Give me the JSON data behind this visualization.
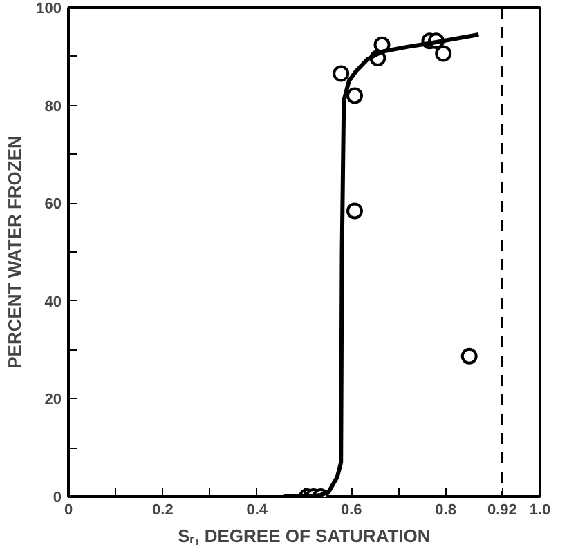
{
  "chart_data": {
    "type": "scatter",
    "xlabel": "Sᵣ, DEGREE OF SATURATION",
    "ylabel": "PERCENT WATER FROZEN",
    "xlim": [
      0,
      1.0
    ],
    "ylim": [
      0,
      100
    ],
    "xticks": [
      0,
      {
        "value": 0.1,
        "label": null
      },
      {
        "value": 0.2,
        "label": "0.2"
      },
      {
        "value": 0.3,
        "label": null
      },
      {
        "value": 0.4,
        "label": "0.4"
      },
      {
        "value": 0.5,
        "label": null
      },
      {
        "value": 0.6,
        "label": "0.6"
      },
      {
        "value": 0.7,
        "label": null
      },
      {
        "value": 0.8,
        "label": "0.8"
      },
      {
        "value": 0.92,
        "label": "0.92"
      },
      {
        "value": 1.0,
        "label": "1.0"
      }
    ],
    "yticks": [
      0,
      {
        "value": 10,
        "label": null
      },
      20,
      {
        "value": 30,
        "label": null
      },
      40,
      {
        "value": 50,
        "label": null
      },
      60,
      {
        "value": 70,
        "label": null
      },
      80,
      {
        "value": 90,
        "label": null
      },
      100
    ],
    "grid": false,
    "series": [
      {
        "marker": "circle",
        "color": "#000000",
        "x": [
          0.506,
          0.52,
          0.535,
          0.578,
          0.607,
          0.607,
          0.656,
          0.665,
          0.766,
          0.78,
          0.795,
          0.85
        ],
        "values": [
          0,
          0,
          0,
          86.5,
          82,
          58.4,
          89.7,
          92.4,
          93.2,
          93.2,
          90.6,
          28.7
        ]
      },
      {
        "type": "line",
        "marker": "none",
        "line_style": "solid",
        "color": "#000000",
        "x": [
          0.457,
          0.5,
          0.535,
          0.552,
          0.57,
          0.578,
          0.58,
          0.584,
          0.595,
          0.61,
          0.635,
          0.665,
          0.72,
          0.766,
          0.87
        ],
        "values": [
          0,
          0,
          0.3,
          1,
          4,
          7,
          50,
          81,
          85,
          87,
          89.5,
          91,
          92,
          92.7,
          94.5
        ]
      }
    ],
    "ref_lines": [
      {
        "axis": "x",
        "value": 0.92,
        "line_style": "dashed",
        "color": "#000000"
      }
    ]
  }
}
